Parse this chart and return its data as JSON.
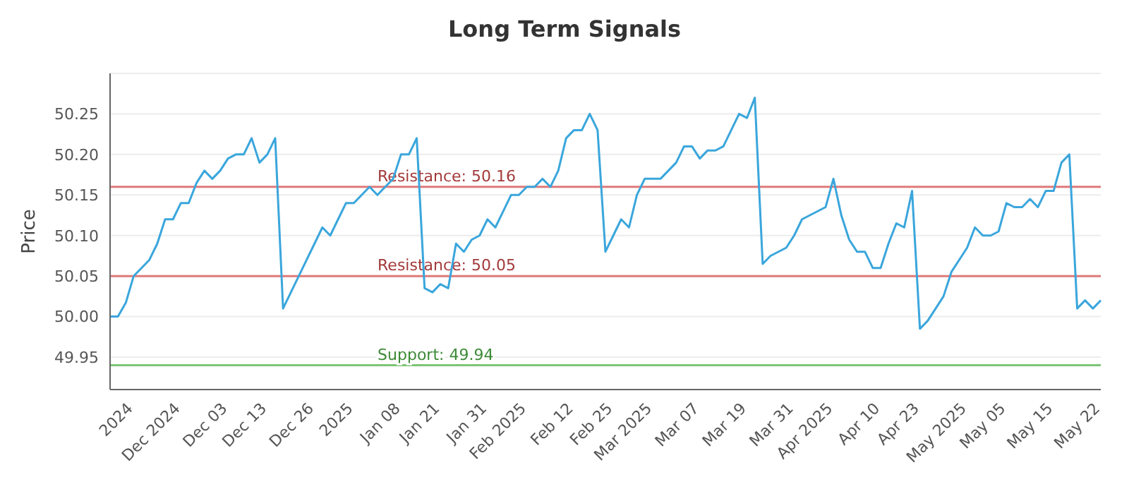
{
  "chart_data": {
    "type": "line",
    "title": "Long Term Signals",
    "ylabel": "Price",
    "categories": [
      null,
      null,
      null,
      "2024",
      null,
      null,
      null,
      null,
      null,
      "Dec 2024",
      null,
      null,
      null,
      null,
      null,
      "Dec 03",
      null,
      null,
      null,
      null,
      "Dec 13",
      null,
      null,
      null,
      null,
      null,
      "Dec 26",
      null,
      null,
      null,
      null,
      "2025",
      null,
      null,
      null,
      null,
      null,
      "Jan 08",
      null,
      null,
      null,
      null,
      "Jan 21",
      null,
      null,
      null,
      null,
      null,
      "Jan 31",
      null,
      null,
      null,
      null,
      "Feb 2025",
      null,
      null,
      null,
      null,
      null,
      "Feb 12",
      null,
      null,
      null,
      null,
      "Feb 25",
      null,
      null,
      null,
      null,
      "Mar 2025",
      null,
      null,
      null,
      null,
      null,
      "Mar 07",
      null,
      null,
      null,
      null,
      null,
      "Mar 19",
      null,
      null,
      null,
      null,
      null,
      "Mar 31",
      null,
      null,
      null,
      null,
      "Apr 2025",
      null,
      null,
      null,
      null,
      null,
      "Apr 10",
      null,
      null,
      null,
      null,
      "Apr 23",
      null,
      null,
      null,
      null,
      null,
      "May 2025",
      null,
      null,
      null,
      null,
      "May 05",
      null,
      null,
      null,
      null,
      null,
      "May 15",
      null,
      null,
      null,
      null,
      null,
      "May 22"
    ],
    "series": [
      {
        "color": "#3aa6dc",
        "values": [
          50.0,
          50.0,
          50.017,
          50.05,
          50.06,
          50.07,
          50.09,
          50.12,
          50.12,
          50.14,
          50.14,
          50.165,
          50.18,
          50.17,
          50.18,
          50.195,
          50.2,
          50.2,
          50.22,
          50.19,
          50.2,
          50.22,
          50.01,
          50.03,
          50.05,
          50.07,
          50.09,
          50.11,
          50.1,
          50.12,
          50.14,
          50.14,
          50.15,
          50.16,
          50.15,
          50.16,
          50.17,
          50.2,
          50.2,
          50.22,
          50.035,
          50.03,
          50.04,
          50.035,
          50.09,
          50.08,
          50.095,
          50.1,
          50.12,
          50.11,
          50.13,
          50.15,
          50.15,
          50.16,
          50.16,
          50.17,
          50.16,
          50.18,
          50.22,
          50.23,
          50.23,
          50.25,
          50.23,
          50.08,
          50.1,
          50.12,
          50.11,
          50.15,
          50.17,
          50.17,
          50.17,
          50.18,
          50.19,
          50.21,
          50.21,
          50.195,
          50.205,
          50.205,
          50.21,
          50.23,
          50.25,
          50.245,
          50.27,
          50.065,
          50.075,
          50.08,
          50.085,
          50.1,
          50.12,
          50.125,
          50.13,
          50.135,
          50.17,
          50.125,
          50.095,
          50.08,
          50.08,
          50.06,
          50.06,
          50.09,
          50.115,
          50.11,
          50.155,
          49.985,
          49.995,
          50.01,
          50.025,
          50.055,
          50.07,
          50.085,
          50.11,
          50.1,
          50.1,
          50.105,
          50.14,
          50.135,
          50.135,
          50.145,
          50.135,
          50.155,
          50.155,
          50.19,
          50.2,
          50.01,
          50.02,
          50.01,
          50.02
        ]
      }
    ],
    "ylim": [
      49.91,
      50.3
    ],
    "yticks": [
      49.95,
      {
        "value": 50.0,
        "label": "50.00"
      },
      50.05,
      {
        "value": 50.1,
        "label": "50.10"
      },
      50.15,
      {
        "value": 50.2,
        "label": "50.20"
      },
      50.25
    ],
    "ref_lines": [
      {
        "axis": "y",
        "value": 50.16,
        "label": "Resistance: 50.16",
        "color": "#e07a7a"
      },
      {
        "axis": "y",
        "value": 50.05,
        "label": "Resistance: 50.05",
        "color": "#e07a7a"
      },
      {
        "axis": "y",
        "value": 49.94,
        "label": "Support: 49.94",
        "color": "#7cc576"
      }
    ],
    "grid": "y",
    "legend": false,
    "marker": "none",
    "line_style": "solid"
  }
}
